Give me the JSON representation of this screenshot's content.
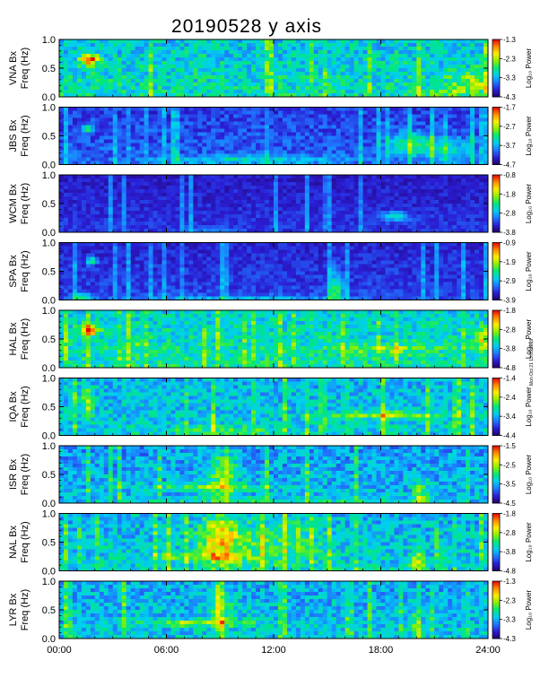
{
  "title": "20190528 y axis",
  "side_note": "Mon Oct 21 13:05 2019",
  "chart_data": {
    "type": "heatmap",
    "title": "20190528 y axis",
    "x_ticks": [
      "00:00",
      "06:00",
      "12:00",
      "18:00",
      "24:00"
    ],
    "x_range": [
      0,
      24
    ],
    "x_unit": "hours UT",
    "y_ticks": [
      "0.0",
      "0.5",
      "1.0"
    ],
    "y_range": [
      0.0,
      1.0
    ],
    "colorbar_label": "Log₁₀ Power",
    "colormap": [
      "#24006b",
      "#2a1fd6",
      "#1f78ff",
      "#00d0f0",
      "#00e87a",
      "#8cf000",
      "#ffee00",
      "#ff8a00",
      "#e80000"
    ],
    "panels": [
      {
        "station": "VNA",
        "ylabel": "VNA Bx\nFreq (Hz)",
        "cb_ticks": [
          "-1.3",
          "-2.3",
          "-3.3",
          "-4.3"
        ],
        "bg": 0.38,
        "noise": 0.13,
        "features": [
          {
            "t": 1.7,
            "f": 0.65,
            "rt": 0.5,
            "rf": 0.09,
            "a": 0.55
          },
          {
            "t": 23.2,
            "f": 0.25,
            "rt": 1.4,
            "rf": 0.18,
            "a": 0.22
          },
          {
            "t": 21.5,
            "f": 0.08,
            "rt": 1.5,
            "rf": 0.08,
            "a": 0.12
          }
        ]
      },
      {
        "station": "JBS",
        "ylabel": "JBS Bx\nFreq (Hz)",
        "cb_ticks": [
          "-1.7",
          "-2.7",
          "-3.7",
          "-4.7"
        ],
        "bg": 0.16,
        "noise": 0.08,
        "features": [
          {
            "t": 1.6,
            "f": 0.62,
            "rt": 0.25,
            "rf": 0.07,
            "a": 0.32
          },
          {
            "t": 19.8,
            "f": 0.35,
            "rt": 1.4,
            "rf": 0.2,
            "a": 0.32
          },
          {
            "t": 10.5,
            "f": 0.08,
            "rt": 5.0,
            "rf": 0.07,
            "a": 0.2
          },
          {
            "t": 22.0,
            "f": 0.25,
            "rt": 1.2,
            "rf": 0.2,
            "a": 0.2
          }
        ]
      },
      {
        "station": "WCM",
        "ylabel": "WCM Bx\nFreq (Hz)",
        "cb_ticks": [
          "-0.8",
          "-1.8",
          "-2.8",
          "-3.8"
        ],
        "bg": 0.1,
        "noise": 0.05,
        "features": [
          {
            "t": 18.8,
            "f": 0.28,
            "rt": 0.8,
            "rf": 0.08,
            "a": 0.28
          },
          {
            "t": 8.5,
            "f": 0.05,
            "rt": 1.5,
            "rf": 0.05,
            "a": 0.1
          }
        ]
      },
      {
        "station": "SPA",
        "ylabel": "SPA Bx\nFreq (Hz)",
        "cb_ticks": [
          "-0.9",
          "-1.9",
          "-2.9",
          "-3.9"
        ],
        "bg": 0.12,
        "noise": 0.06,
        "features": [
          {
            "t": 1.8,
            "f": 0.68,
            "rt": 0.3,
            "rf": 0.07,
            "a": 0.35
          },
          {
            "t": 15.5,
            "f": 0.15,
            "rt": 0.4,
            "rf": 0.35,
            "a": 0.35
          },
          {
            "t": 1.2,
            "f": 0.05,
            "rt": 0.6,
            "rf": 0.06,
            "a": 0.3
          },
          {
            "t": 10.0,
            "f": 0.04,
            "rt": 6.0,
            "rf": 0.04,
            "a": 0.18
          }
        ]
      },
      {
        "station": "HAL",
        "ylabel": "HAL Bx\nFreq (Hz)",
        "cb_ticks": [
          "-1.8",
          "-2.8",
          "-3.8",
          "-4.8"
        ],
        "bg": 0.4,
        "noise": 0.12,
        "features": [
          {
            "t": 1.7,
            "f": 0.66,
            "rt": 0.5,
            "rf": 0.09,
            "a": 0.55
          },
          {
            "t": 18.2,
            "f": 0.33,
            "rt": 2.5,
            "rf": 0.06,
            "a": 0.22
          },
          {
            "t": 23.7,
            "f": 0.5,
            "rt": 0.3,
            "rf": 0.2,
            "a": 0.35
          },
          {
            "t": 4.5,
            "f": 0.45,
            "rt": 0.5,
            "rf": 0.1,
            "a": 0.15
          }
        ]
      },
      {
        "station": "IQA",
        "ylabel": "IQA Bx\nFreq (Hz)",
        "cb_ticks": [
          "-1.4",
          "-2.4",
          "-3.4",
          "-4.4"
        ],
        "bg": 0.34,
        "noise": 0.12,
        "features": [
          {
            "t": 18.5,
            "f": 0.35,
            "rt": 3.0,
            "rf": 0.06,
            "a": 0.3
          },
          {
            "t": 1.6,
            "f": 0.55,
            "rt": 0.3,
            "rf": 0.3,
            "a": 0.25
          },
          {
            "t": 9.5,
            "f": 0.08,
            "rt": 3.0,
            "rf": 0.08,
            "a": 0.15
          }
        ]
      },
      {
        "station": "ISR",
        "ylabel": "ISR Bx\nFreq (Hz)",
        "cb_ticks": [
          "-1.5",
          "-2.5",
          "-3.5",
          "-4.5"
        ],
        "bg": 0.3,
        "noise": 0.12,
        "features": [
          {
            "t": 9.2,
            "f": 0.5,
            "rt": 0.8,
            "rf": 0.4,
            "a": 0.28
          },
          {
            "t": 8.5,
            "f": 0.28,
            "rt": 3.0,
            "rf": 0.06,
            "a": 0.25
          },
          {
            "t": 20.2,
            "f": 0.15,
            "rt": 0.4,
            "rf": 0.25,
            "a": 0.28
          },
          {
            "t": 12.0,
            "f": 0.05,
            "rt": 8.0,
            "rf": 0.05,
            "a": 0.12
          }
        ]
      },
      {
        "station": "NAL",
        "ylabel": "NAL Bx\nFreq (Hz)",
        "cb_ticks": [
          "-1.8",
          "-2.8",
          "-3.8",
          "-4.8"
        ],
        "bg": 0.34,
        "noise": 0.13,
        "features": [
          {
            "t": 9.0,
            "f": 0.55,
            "rt": 1.0,
            "rf": 0.45,
            "a": 0.35
          },
          {
            "t": 11.5,
            "f": 0.5,
            "rt": 3.5,
            "rf": 0.45,
            "a": 0.15
          },
          {
            "t": 8.0,
            "f": 0.25,
            "rt": 2.5,
            "rf": 0.07,
            "a": 0.25
          },
          {
            "t": 20.1,
            "f": 0.15,
            "rt": 0.4,
            "rf": 0.2,
            "a": 0.3
          }
        ]
      },
      {
        "station": "LYR",
        "ylabel": "LYR Bx\nFreq (Hz)",
        "cb_ticks": [
          "-1.3",
          "-2.3",
          "-3.3",
          "-4.3"
        ],
        "bg": 0.32,
        "noise": 0.12,
        "features": [
          {
            "t": 8.0,
            "f": 0.27,
            "rt": 3.0,
            "rf": 0.06,
            "a": 0.28
          },
          {
            "t": 9.0,
            "f": 0.6,
            "rt": 0.8,
            "rf": 0.35,
            "a": 0.18
          },
          {
            "t": 20.0,
            "f": 0.2,
            "rt": 0.3,
            "rf": 0.25,
            "a": 0.25
          }
        ]
      }
    ]
  }
}
